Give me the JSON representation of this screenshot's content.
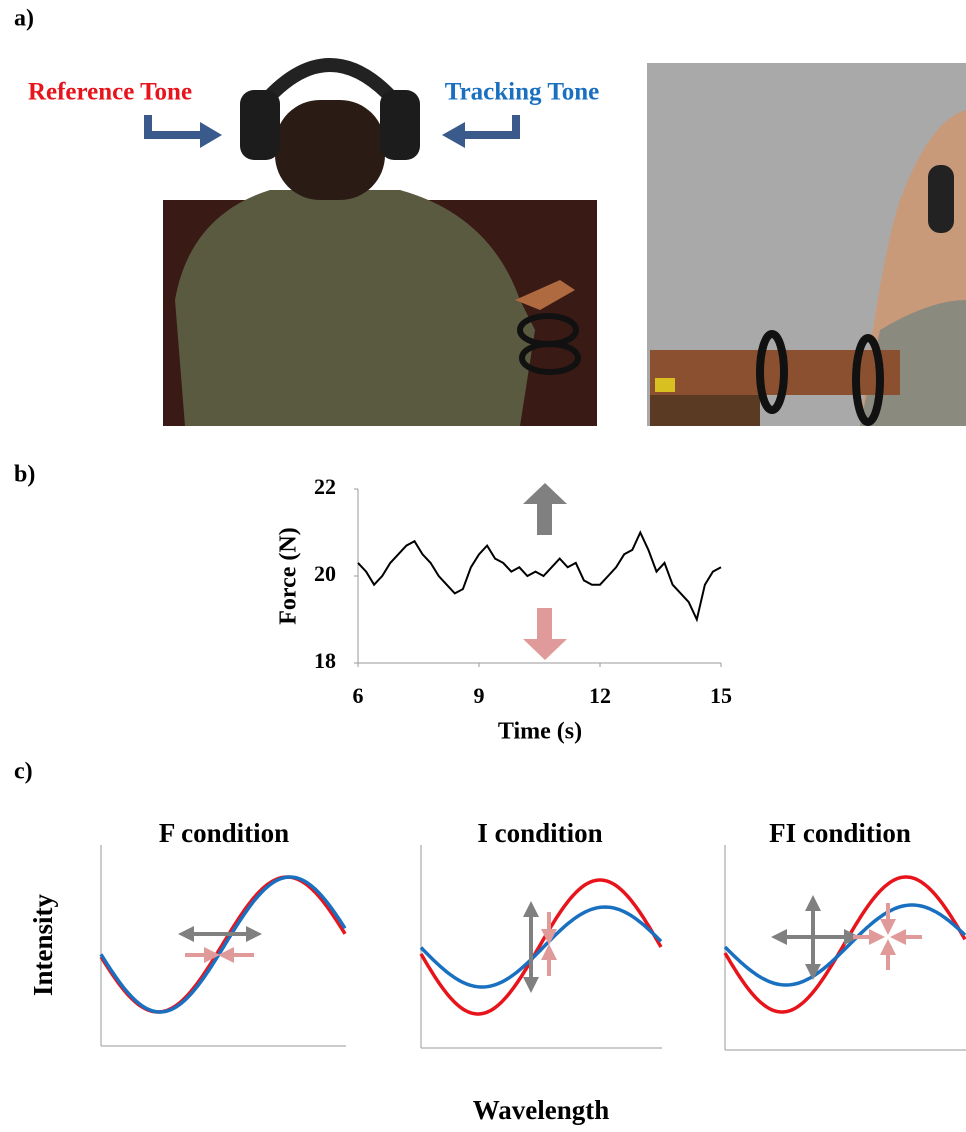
{
  "labels": {
    "a": "a)",
    "b": "b)",
    "c": "c)"
  },
  "figure_a": {
    "reference_tone": "Reference Tone",
    "tracking_tone": "Tracking Tone"
  },
  "chart_data": {
    "type": "line",
    "x_label": "Time (s)",
    "y_label": "Force (N)",
    "x": [
      6.0,
      6.2,
      6.4,
      6.6,
      6.8,
      7.0,
      7.2,
      7.4,
      7.6,
      7.8,
      8.0,
      8.2,
      8.4,
      8.6,
      8.8,
      9.0,
      9.2,
      9.4,
      9.6,
      9.8,
      10.0,
      10.2,
      10.4,
      10.6,
      10.8,
      11.0,
      11.2,
      11.4,
      11.6,
      11.8,
      12.0,
      12.2,
      12.4,
      12.6,
      12.8,
      13.0,
      13.2,
      13.4,
      13.6,
      13.8,
      14.0,
      14.2,
      14.4,
      14.6,
      14.8,
      15.0
    ],
    "values": [
      20.3,
      20.1,
      19.8,
      20.0,
      20.3,
      20.5,
      20.7,
      20.8,
      20.5,
      20.3,
      20.0,
      19.8,
      19.6,
      19.7,
      20.2,
      20.5,
      20.7,
      20.4,
      20.3,
      20.1,
      20.2,
      20.0,
      20.1,
      20.0,
      20.2,
      20.4,
      20.2,
      20.3,
      19.9,
      19.8,
      19.8,
      20.0,
      20.2,
      20.5,
      20.6,
      21.0,
      20.6,
      20.1,
      20.3,
      19.8,
      19.6,
      19.4,
      19.0,
      19.8,
      20.1,
      20.2
    ],
    "color": "#000000",
    "xlim": [
      6,
      15
    ],
    "ylim": [
      18,
      22
    ],
    "xticks": [
      6,
      9,
      12,
      15
    ],
    "yticks": [
      18,
      20,
      22
    ]
  },
  "figure_c": {
    "panels": [
      {
        "title": "F condition"
      },
      {
        "title": "I condition"
      },
      {
        "title": "FI condition"
      }
    ],
    "y_label": "Intensity",
    "x_label": "Wavelength"
  }
}
